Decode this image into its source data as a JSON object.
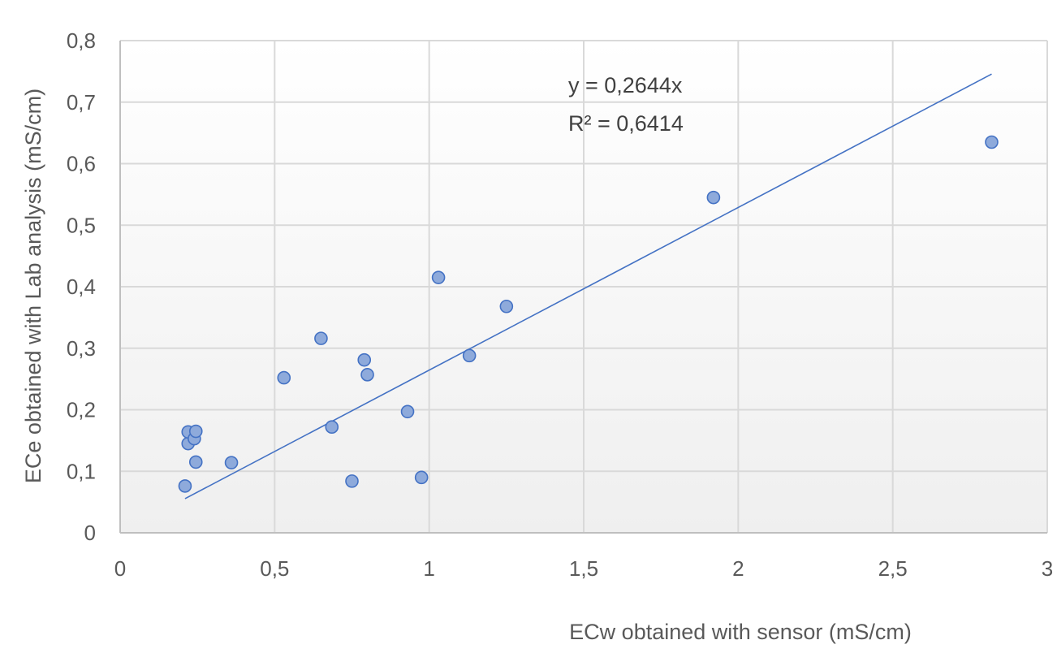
{
  "chart_data": {
    "type": "scatter",
    "title": "",
    "xlabel": "ECw obtained with sensor (mS/cm)",
    "ylabel": "ECe obtained with Lab analysis (mS/cm)",
    "xlim": [
      0,
      3
    ],
    "ylim": [
      0,
      0.8
    ],
    "x_ticks": [
      0,
      0.5,
      1,
      1.5,
      2,
      2.5,
      3
    ],
    "y_ticks": [
      0,
      0.1,
      0.2,
      0.3,
      0.4,
      0.5,
      0.6,
      0.7,
      0.8
    ],
    "x_tick_labels": [
      "0",
      "0,5",
      "1",
      "1,5",
      "2",
      "2,5",
      "3"
    ],
    "y_tick_labels": [
      "0",
      "0,1",
      "0,2",
      "0,3",
      "0,4",
      "0,5",
      "0,6",
      "0,7",
      "0,8"
    ],
    "grid": true,
    "legend": "none",
    "marker_color": "#8eaadb",
    "marker_edge_color": "#4472c4",
    "trendline_color": "#4472c4",
    "series": [
      {
        "points": [
          {
            "x": 0.21,
            "y": 0.076
          },
          {
            "x": 0.22,
            "y": 0.145
          },
          {
            "x": 0.22,
            "y": 0.164
          },
          {
            "x": 0.24,
            "y": 0.153
          },
          {
            "x": 0.245,
            "y": 0.165
          },
          {
            "x": 0.245,
            "y": 0.115
          },
          {
            "x": 0.36,
            "y": 0.114
          },
          {
            "x": 0.53,
            "y": 0.252
          },
          {
            "x": 0.65,
            "y": 0.316
          },
          {
            "x": 0.685,
            "y": 0.172
          },
          {
            "x": 0.75,
            "y": 0.084
          },
          {
            "x": 0.79,
            "y": 0.281
          },
          {
            "x": 0.8,
            "y": 0.257
          },
          {
            "x": 0.93,
            "y": 0.197
          },
          {
            "x": 0.975,
            "y": 0.09
          },
          {
            "x": 1.03,
            "y": 0.415
          },
          {
            "x": 1.13,
            "y": 0.288
          },
          {
            "x": 1.25,
            "y": 0.368
          },
          {
            "x": 1.92,
            "y": 0.545
          },
          {
            "x": 2.82,
            "y": 0.635
          }
        ]
      }
    ],
    "trendline": {
      "slope": 0.2644,
      "intercept": 0,
      "x_start": 0.21,
      "x_end": 2.82,
      "equation_label": "y = 0,2644x",
      "r2_label": "R² = 0,6414"
    }
  }
}
